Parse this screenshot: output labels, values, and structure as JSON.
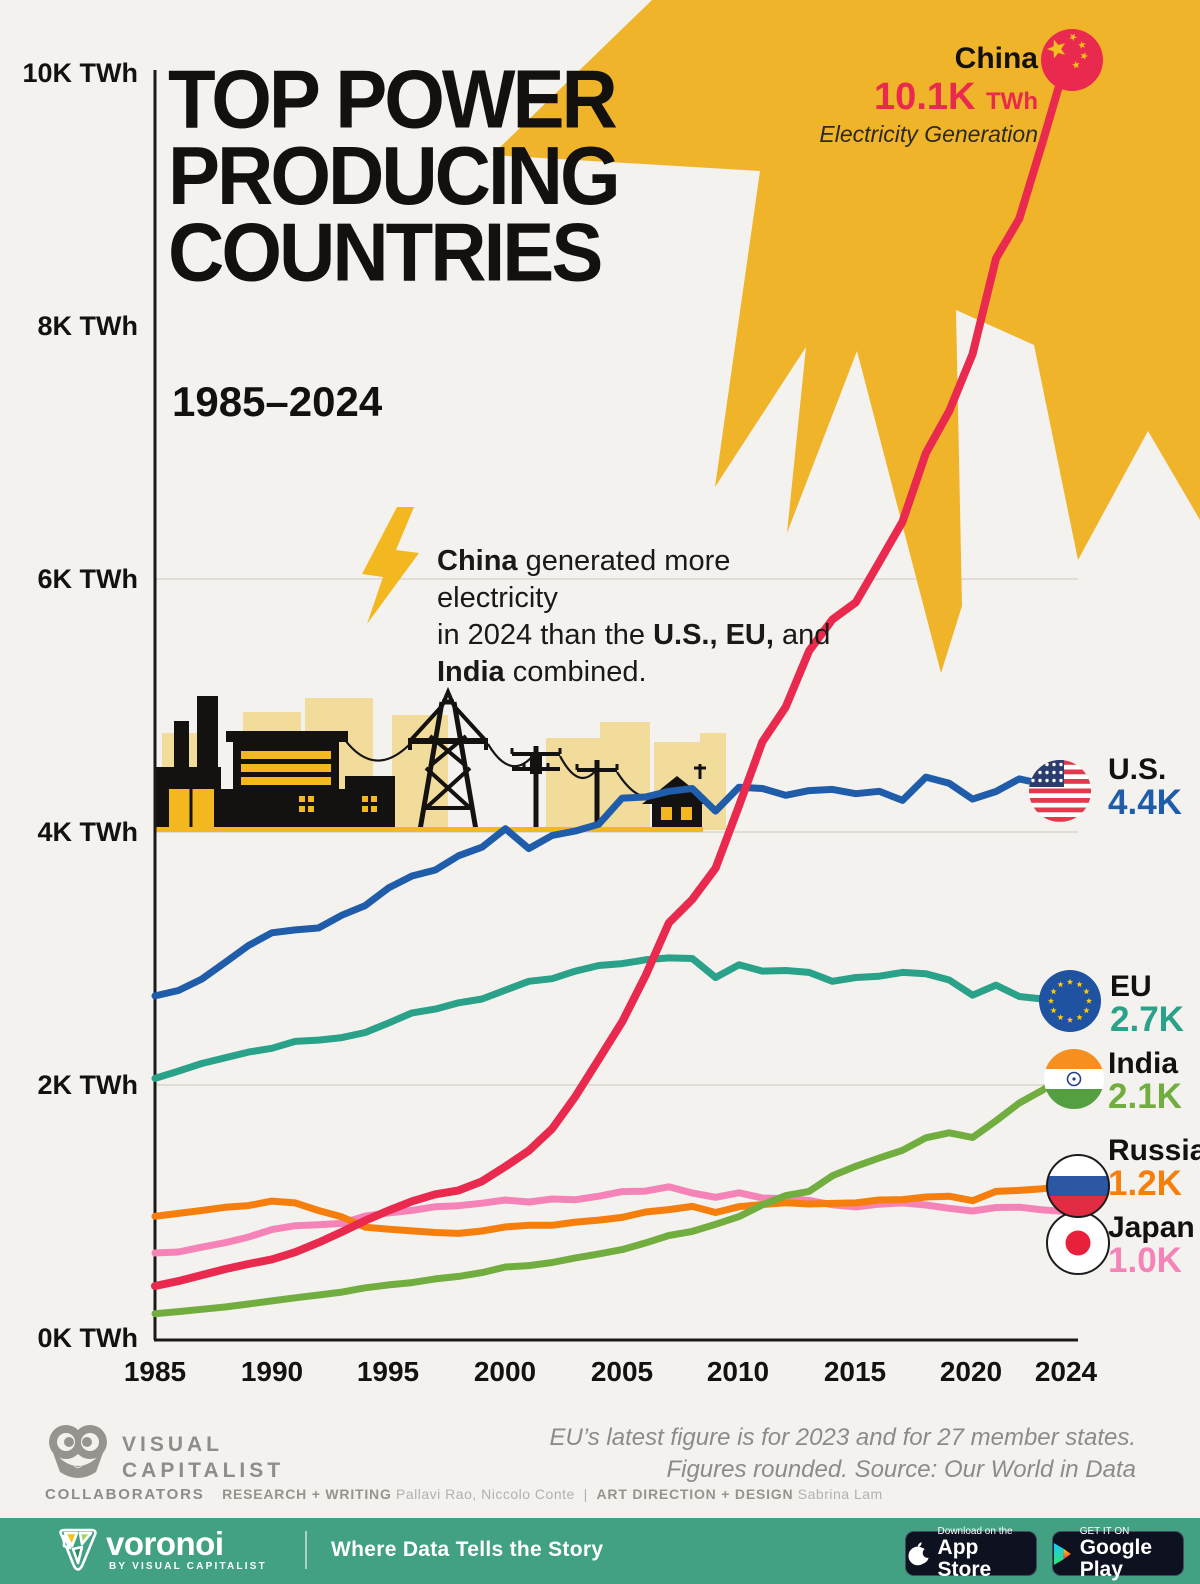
{
  "title": {
    "line1": "TOP POWER",
    "line2": "PRODUCING",
    "line3": "COUNTRIES",
    "subtitle": "1985–2024"
  },
  "callout": {
    "country": "China",
    "value": "10.1K",
    "unit": "TWh",
    "caption": "Electricity Generation",
    "value_color": "#e9294d"
  },
  "annotation": {
    "line1_bold": "China",
    "line1_rest": " generated more electricity",
    "line2_pre": "in 2024 than the ",
    "line2_bold": "U.S., EU,",
    "line2_post": " and",
    "line3_bold": "India",
    "line3_rest": " combined."
  },
  "y_axis": {
    "labels": [
      "10K TWh",
      "8K TWh",
      "6K TWh",
      "4K TWh",
      "2K TWh",
      "0K TWh"
    ]
  },
  "x_axis": {
    "labels": [
      "1985",
      "1990",
      "1995",
      "2000",
      "2005",
      "2010",
      "2015",
      "2020",
      "2024"
    ]
  },
  "legend": [
    {
      "name": "U.S.",
      "value": "4.4K",
      "color": "#1f5ca9"
    },
    {
      "name": "EU",
      "value": "2.7K",
      "color": "#2aa189"
    },
    {
      "name": "India",
      "value": "2.1K",
      "color": "#72ae3f"
    },
    {
      "name": "Russia",
      "value": "1.2K",
      "color": "#f67e0c"
    },
    {
      "name": "Japan",
      "value": "1.0K",
      "color": "#f583b8"
    }
  ],
  "footer": {
    "note_line1": "EU’s latest figure is for 2023 and for 27 member states.",
    "note_line2": "Figures rounded. Source: Our World in Data",
    "brand_line1": "VISUAL",
    "brand_line2": "CAPITALIST",
    "collaborators_label": "COLLABORATORS",
    "research_label": "RESEARCH + WRITING",
    "research_names": "Pallavi Rao, Niccolo Conte",
    "separator": "|",
    "design_label": "ART DIRECTION + DESIGN",
    "design_names": "Sabrina Lam"
  },
  "bottom_bar": {
    "logo": "voronoi",
    "logo_sub": "BY VISUAL CAPITALIST",
    "slogan": "Where Data Tells the Story",
    "appstore_small": "Download on the",
    "appstore_big": "App Store",
    "gplay_small": "GET IT ON",
    "gplay_big": "Google Play"
  },
  "chart_data": {
    "type": "line",
    "title": "Top Power Producing Countries 1985–2024",
    "ylabel": "Electricity generation (TWh)",
    "ylim": [
      0,
      10500
    ],
    "xlim": [
      1985,
      2024
    ],
    "grid_levels_twh": [
      2000,
      4000,
      6000
    ],
    "legend_position": "right",
    "years": [
      1985,
      1986,
      1987,
      1988,
      1989,
      1990,
      1991,
      1992,
      1993,
      1994,
      1995,
      1996,
      1997,
      1998,
      1999,
      2000,
      2001,
      2002,
      2003,
      2004,
      2005,
      2006,
      2007,
      2008,
      2009,
      2010,
      2011,
      2012,
      2013,
      2014,
      2015,
      2016,
      2017,
      2018,
      2019,
      2020,
      2021,
      2022,
      2023,
      2024
    ],
    "series": [
      {
        "name": "China",
        "color": "#e9294d",
        "width": 8,
        "end_label": "10.1K TWh",
        "values": [
          411,
          450,
          497,
          545,
          585,
          621,
          678,
          754,
          839,
          928,
          1008,
          1081,
          1136,
          1167,
          1239,
          1356,
          1481,
          1654,
          1911,
          2203,
          2500,
          2866,
          3282,
          3467,
          3715,
          4207,
          4713,
          4988,
          5432,
          5680,
          5815,
          6133,
          6453,
          6995,
          7327,
          7779,
          8534,
          8849,
          9456,
          10087
        ]
      },
      {
        "name": "U.S.",
        "color": "#1f5ca9",
        "width": 7,
        "end_label": "4.4K",
        "values": [
          2704,
          2747,
          2837,
          2968,
          3102,
          3203,
          3226,
          3241,
          3342,
          3418,
          3558,
          3652,
          3700,
          3813,
          3880,
          4026,
          3869,
          3972,
          4008,
          4062,
          4268,
          4277,
          4322,
          4344,
          4165,
          4354,
          4344,
          4290,
          4327,
          4337,
          4303,
          4322,
          4250,
          4434,
          4385,
          4260,
          4320,
          4420,
          4380,
          4450
        ]
      },
      {
        "name": "EU",
        "color": "#2aa189",
        "width": 7,
        "end_label": "2.7K",
        "values": [
          2052,
          2110,
          2170,
          2215,
          2260,
          2290,
          2345,
          2355,
          2375,
          2415,
          2490,
          2570,
          2600,
          2650,
          2680,
          2750,
          2820,
          2840,
          2900,
          2945,
          2960,
          2990,
          3005,
          3000,
          2850,
          2950,
          2900,
          2905,
          2890,
          2820,
          2850,
          2860,
          2890,
          2880,
          2830,
          2710,
          2790,
          2700,
          2680
        ]
      },
      {
        "name": "India",
        "color": "#72ae3f",
        "width": 7,
        "end_label": "2.1K",
        "values": [
          192,
          209,
          227,
          245,
          269,
          293,
          318,
          340,
          363,
          397,
          420,
          438,
          467,
          487,
          517,
          561,
          572,
          597,
          633,
          665,
          699,
          752,
          810,
          843,
          899,
          960,
          1052,
          1126,
          1159,
          1282,
          1357,
          1423,
          1484,
          1583,
          1622,
          1585,
          1717,
          1858,
          1960,
          2100
        ]
      },
      {
        "name": "Russia",
        "color": "#f67e0c",
        "width": 7,
        "end_label": "1.2K",
        "values": [
          962,
          985,
          1008,
          1033,
          1047,
          1082,
          1068,
          1008,
          957,
          876,
          860,
          847,
          834,
          827,
          846,
          878,
          891,
          891,
          916,
          932,
          953,
          996,
          1015,
          1040,
          992,
          1038,
          1055,
          1069,
          1059,
          1064,
          1068,
          1091,
          1094,
          1115,
          1121,
          1085,
          1159,
          1167,
          1180,
          1200
        ]
      },
      {
        "name": "Japan",
        "color": "#f583b8",
        "width": 7,
        "end_label": "1.0K",
        "values": [
          672,
          680,
          718,
          753,
          798,
          857,
          888,
          895,
          906,
          964,
          989,
          1009,
          1038,
          1046,
          1066,
          1091,
          1075,
          1099,
          1093,
          1121,
          1157,
          1161,
          1195,
          1146,
          1112,
          1148,
          1107,
          1101,
          1088,
          1053,
          1036,
          1058,
          1068,
          1051,
          1025,
          1004,
          1032,
          1034,
          1013,
          1000
        ]
      }
    ]
  }
}
